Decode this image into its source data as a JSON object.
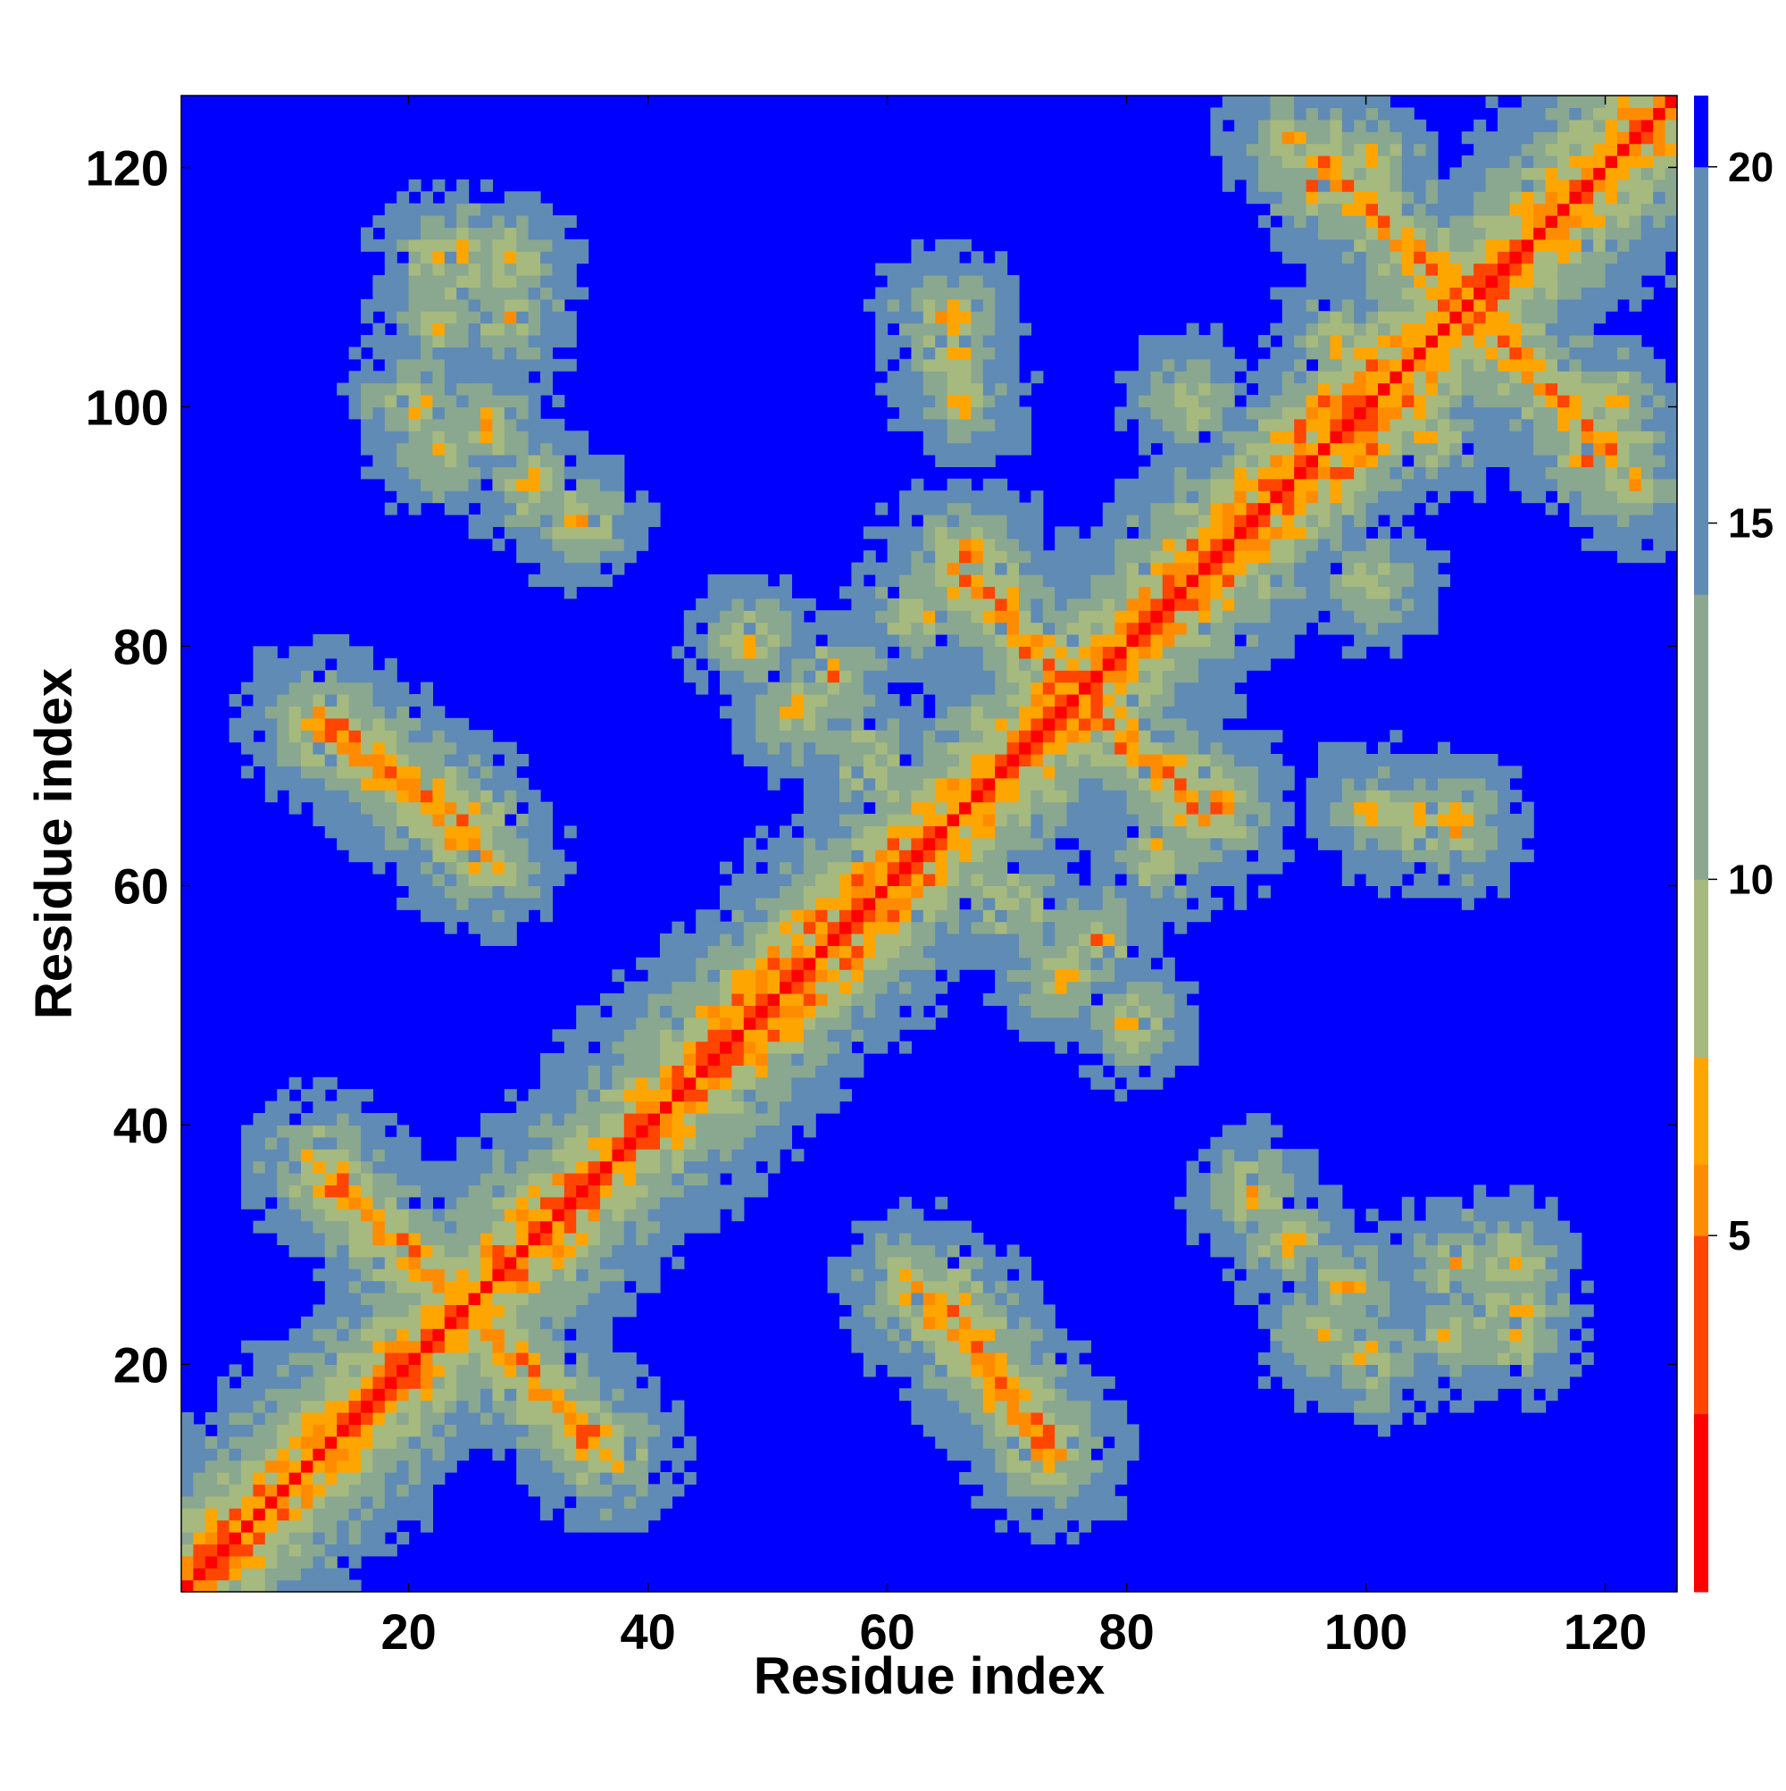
{
  "chart_data": {
    "type": "heatmap",
    "title": "",
    "xlabel": "Residue index",
    "ylabel": "Residue index",
    "n_residues": 125,
    "xlim": [
      1,
      126
    ],
    "ylim": [
      1,
      126
    ],
    "xticks": [
      20,
      40,
      60,
      80,
      100,
      120
    ],
    "yticks": [
      20,
      40,
      60,
      80,
      100,
      120
    ],
    "colorbar": {
      "ticks": [
        5,
        10,
        15,
        20
      ],
      "range": [
        0,
        21
      ],
      "colors": [
        "#ff0000",
        "#ff4500",
        "#ff8c00",
        "#ffa500",
        "#a6b97e",
        "#8aa790",
        "#5f8bb5",
        "#0000ff"
      ],
      "thresholds": [
        2.5,
        5,
        6,
        7.5,
        10,
        14,
        20
      ]
    },
    "grid": false,
    "legend": "colorbar-right",
    "structure": {
      "main_diagonal": {
        "from": 1,
        "to": 125
      },
      "contact_bands": [
        {
          "type": "antiparallel",
          "start": [
            12,
            36
          ],
          "end": [
            26,
            22
          ]
        },
        {
          "type": "antiparallel",
          "start": [
            13,
            73
          ],
          "end": [
            26,
            62
          ]
        },
        {
          "type": "antiparallel",
          "start": [
            64,
            25
          ],
          "end": [
            73,
            12
          ]
        },
        {
          "type": "antiparallel",
          "start": [
            65,
            86
          ],
          "end": [
            75,
            76
          ]
        },
        {
          "type": "antiparallel",
          "start": [
            75,
            74
          ],
          "end": [
            87,
            66
          ]
        },
        {
          "type": "antiparallel",
          "start": [
            98,
            118
          ],
          "end": [
            120,
            96
          ]
        },
        {
          "type": "parallel",
          "start": [
            45,
            48
          ],
          "end": [
            60,
            63
          ]
        },
        {
          "type": "parallel",
          "start": [
            85,
            88
          ],
          "end": [
            100,
            103
          ]
        }
      ],
      "off_diagonal_contacts": [
        [
          22,
          112
        ],
        [
          28,
          112
        ],
        [
          22,
          107
        ],
        [
          28,
          107
        ],
        [
          20,
          100
        ],
        [
          26,
          98
        ],
        [
          64,
          107
        ],
        [
          65,
          103
        ],
        [
          66,
          100
        ],
        [
          97,
          105
        ],
        [
          100,
          120
        ],
        [
          118,
          95
        ],
        [
          122,
          93
        ],
        [
          100,
          85
        ],
        [
          107,
          65
        ],
        [
          104,
          65
        ],
        [
          112,
          24
        ],
        [
          107,
          28
        ],
        [
          96,
          22
        ],
        [
          93,
          30
        ],
        [
          52,
          74
        ],
        [
          55,
          77
        ],
        [
          58,
          70
        ],
        [
          62,
          82
        ],
        [
          48,
          80
        ],
        [
          34,
          90
        ]
      ]
    }
  }
}
